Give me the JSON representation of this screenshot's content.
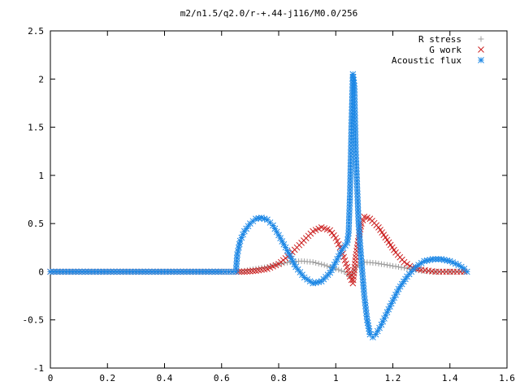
{
  "chart_data": {
    "type": "scatter",
    "title": "m2/n1.5/q2.0/r-+.44-j116/M0.0/256",
    "xlim": [
      0,
      1.6
    ],
    "ylim": [
      -1,
      2.5
    ],
    "x_ticks": [
      "0",
      "0.2",
      "0.4",
      "0.6",
      "0.8",
      "1",
      "1.2",
      "1.4",
      "1.6"
    ],
    "y_ticks": [
      "-1",
      "-0.5",
      "0",
      "0.5",
      "1",
      "1.5",
      "2",
      "2.5"
    ],
    "legend_position": "top-right",
    "series": [
      {
        "name": "R stress",
        "marker": "plus",
        "color": "#a0a0a0",
        "points": [
          [
            0.0,
            0
          ],
          [
            0.1,
            0
          ],
          [
            0.2,
            0
          ],
          [
            0.3,
            0
          ],
          [
            0.4,
            0
          ],
          [
            0.5,
            0
          ],
          [
            0.6,
            0
          ],
          [
            0.65,
            0
          ],
          [
            0.68,
            0.01
          ],
          [
            0.72,
            0.03
          ],
          [
            0.76,
            0.05
          ],
          [
            0.8,
            0.08
          ],
          [
            0.84,
            0.1
          ],
          [
            0.88,
            0.11
          ],
          [
            0.92,
            0.1
          ],
          [
            0.96,
            0.07
          ],
          [
            1.0,
            0.03
          ],
          [
            1.03,
            0.0
          ],
          [
            1.05,
            -0.05
          ],
          [
            1.06,
            -0.02
          ],
          [
            1.07,
            0.05
          ],
          [
            1.1,
            0.1
          ],
          [
            1.14,
            0.09
          ],
          [
            1.18,
            0.07
          ],
          [
            1.22,
            0.05
          ],
          [
            1.26,
            0.03
          ],
          [
            1.3,
            0.01
          ],
          [
            1.34,
            0.0
          ],
          [
            1.38,
            0.0
          ],
          [
            1.42,
            0.0
          ],
          [
            1.45,
            0.0
          ]
        ]
      },
      {
        "name": "G work",
        "marker": "cross",
        "color": "#cc2222",
        "points": [
          [
            0.0,
            0
          ],
          [
            0.1,
            0
          ],
          [
            0.2,
            0
          ],
          [
            0.3,
            0
          ],
          [
            0.4,
            0
          ],
          [
            0.5,
            0
          ],
          [
            0.6,
            0
          ],
          [
            0.65,
            0
          ],
          [
            0.68,
            0.0
          ],
          [
            0.72,
            0.01
          ],
          [
            0.76,
            0.03
          ],
          [
            0.8,
            0.08
          ],
          [
            0.84,
            0.18
          ],
          [
            0.88,
            0.3
          ],
          [
            0.92,
            0.42
          ],
          [
            0.95,
            0.46
          ],
          [
            0.98,
            0.43
          ],
          [
            1.0,
            0.35
          ],
          [
            1.02,
            0.22
          ],
          [
            1.04,
            0.05
          ],
          [
            1.05,
            -0.05
          ],
          [
            1.06,
            -0.12
          ],
          [
            1.07,
            0.15
          ],
          [
            1.08,
            0.35
          ],
          [
            1.09,
            0.5
          ],
          [
            1.1,
            0.57
          ],
          [
            1.12,
            0.55
          ],
          [
            1.15,
            0.46
          ],
          [
            1.18,
            0.33
          ],
          [
            1.21,
            0.2
          ],
          [
            1.24,
            0.1
          ],
          [
            1.27,
            0.04
          ],
          [
            1.3,
            0.02
          ],
          [
            1.35,
            0.0
          ],
          [
            1.4,
            0.0
          ],
          [
            1.45,
            0.0
          ]
        ]
      },
      {
        "name": "Acoustic flux",
        "marker": "star",
        "color": "#1e88e5",
        "points": [
          [
            0.0,
            0
          ],
          [
            0.1,
            0
          ],
          [
            0.2,
            0
          ],
          [
            0.3,
            0
          ],
          [
            0.4,
            0
          ],
          [
            0.5,
            0
          ],
          [
            0.6,
            0
          ],
          [
            0.65,
            0
          ],
          [
            0.655,
            0.18
          ],
          [
            0.665,
            0.32
          ],
          [
            0.68,
            0.42
          ],
          [
            0.7,
            0.5
          ],
          [
            0.72,
            0.55
          ],
          [
            0.74,
            0.56
          ],
          [
            0.76,
            0.54
          ],
          [
            0.78,
            0.48
          ],
          [
            0.8,
            0.38
          ],
          [
            0.83,
            0.22
          ],
          [
            0.86,
            0.05
          ],
          [
            0.89,
            -0.06
          ],
          [
            0.92,
            -0.12
          ],
          [
            0.95,
            -0.1
          ],
          [
            0.98,
            -0.01
          ],
          [
            1.0,
            0.1
          ],
          [
            1.02,
            0.22
          ],
          [
            1.04,
            0.3
          ],
          [
            1.045,
            0.4
          ],
          [
            1.05,
            0.82
          ],
          [
            1.055,
            1.51
          ],
          [
            1.06,
            2.05
          ],
          [
            1.065,
            1.93
          ],
          [
            1.07,
            1.25
          ],
          [
            1.08,
            0.5
          ],
          [
            1.09,
            0.1
          ],
          [
            1.1,
            -0.25
          ],
          [
            1.11,
            -0.5
          ],
          [
            1.12,
            -0.65
          ],
          [
            1.13,
            -0.68
          ],
          [
            1.14,
            -0.65
          ],
          [
            1.16,
            -0.55
          ],
          [
            1.18,
            -0.42
          ],
          [
            1.2,
            -0.3
          ],
          [
            1.22,
            -0.18
          ],
          [
            1.25,
            -0.05
          ],
          [
            1.28,
            0.05
          ],
          [
            1.31,
            0.11
          ],
          [
            1.34,
            0.13
          ],
          [
            1.37,
            0.13
          ],
          [
            1.4,
            0.11
          ],
          [
            1.43,
            0.07
          ],
          [
            1.45,
            0.03
          ],
          [
            1.46,
            0.0
          ]
        ]
      }
    ]
  }
}
